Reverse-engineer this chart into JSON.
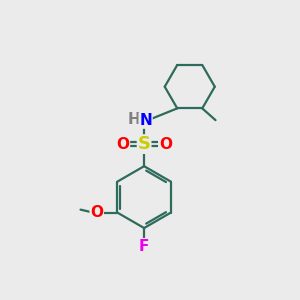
{
  "background_color": "#ebebeb",
  "bond_color": "#2d6b5a",
  "bond_width": 1.6,
  "atom_colors": {
    "S": "#cccc00",
    "O": "#ff0000",
    "N": "#0000ff",
    "H": "#808080",
    "F": "#ee00ee",
    "C": "#2d6b5a"
  },
  "font_size_S": 13,
  "font_size_atom": 11,
  "font_size_NH": 11
}
